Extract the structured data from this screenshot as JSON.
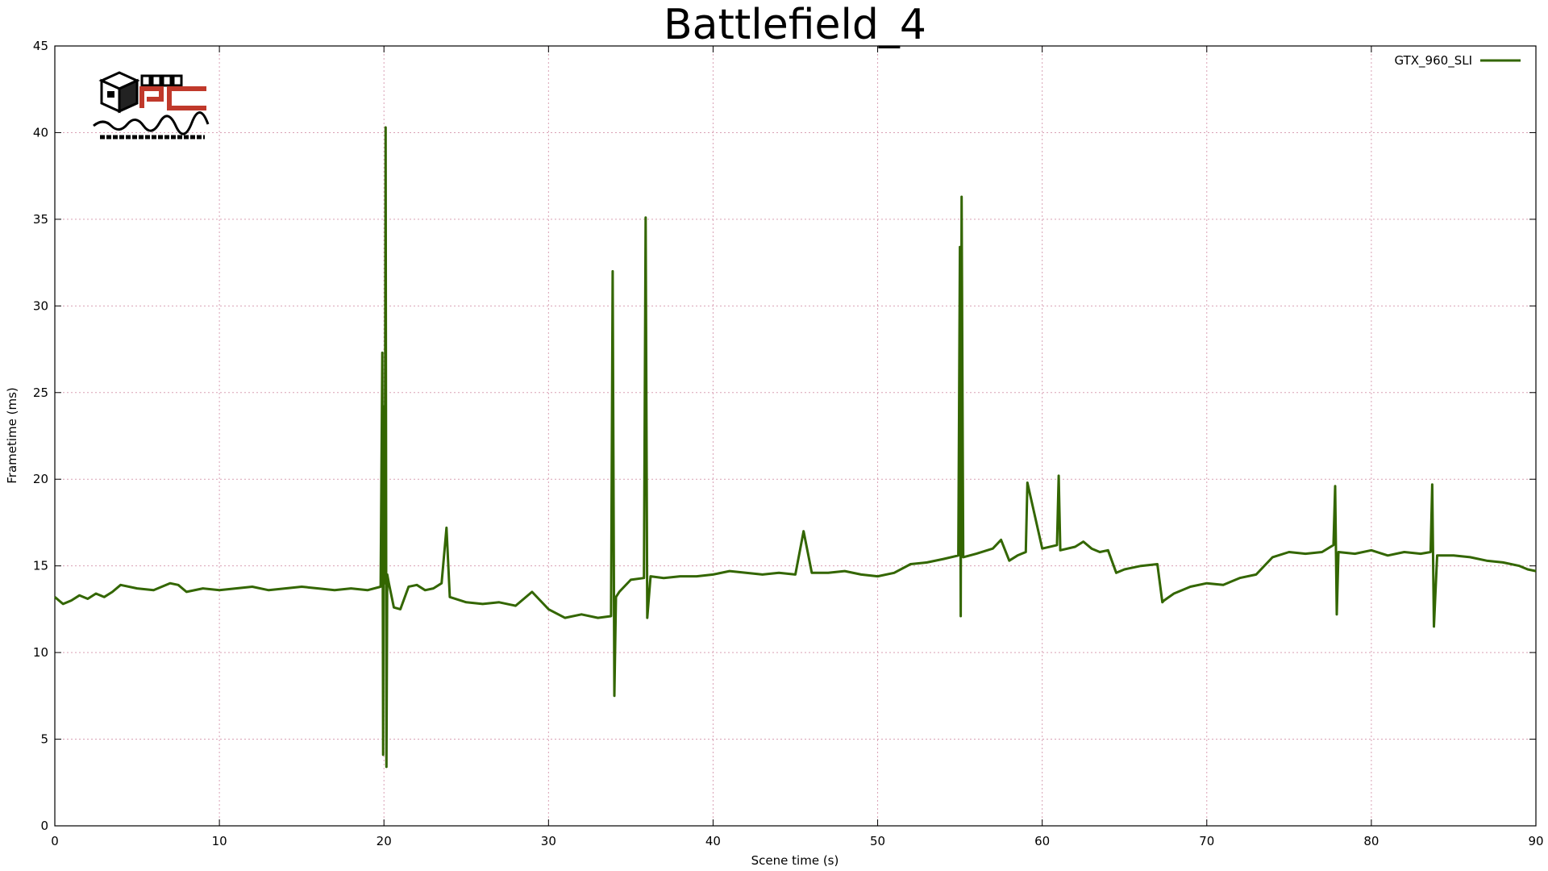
{
  "chart_data": {
    "type": "line",
    "title": "Battlefield_4",
    "xlabel": "Scene time (s)",
    "ylabel": "Frametime (ms)",
    "xlim": [
      0,
      90
    ],
    "ylim": [
      0,
      45
    ],
    "xticks": [
      0,
      10,
      20,
      30,
      40,
      50,
      60,
      70,
      80,
      90
    ],
    "yticks": [
      0,
      5,
      10,
      15,
      20,
      25,
      30,
      35,
      40,
      45
    ],
    "grid": true,
    "legend_position": "top-right",
    "series": [
      {
        "name": "GTX_960_SLI",
        "color": "#336600",
        "x": [
          0,
          0.5,
          1,
          1.5,
          2,
          2.5,
          3,
          3.5,
          4,
          5,
          6,
          7,
          7.5,
          8,
          9,
          10,
          11,
          12,
          13,
          14,
          15,
          16,
          17,
          18,
          19,
          19.8,
          19.9,
          19.95,
          20.0,
          20.05,
          20.1,
          20.15,
          20.2,
          20.3,
          20.6,
          21,
          21.5,
          22,
          22.5,
          23,
          23.5,
          23.8,
          24,
          25,
          26,
          27,
          28,
          29,
          30,
          31,
          32,
          33,
          33.8,
          33.9,
          34.0,
          34.1,
          34.3,
          35,
          35.8,
          35.9,
          36.0,
          36.2,
          37,
          38,
          39,
          40,
          41,
          42,
          43,
          44,
          45,
          45.5,
          46,
          47,
          48,
          49,
          50,
          51,
          52,
          53,
          54,
          54.9,
          55.0,
          55.05,
          55.1,
          55.2,
          56,
          57,
          57.5,
          58,
          58.5,
          59,
          59.1,
          60,
          60.9,
          61.0,
          61.1,
          62,
          62.5,
          63,
          63.5,
          64,
          64.5,
          65,
          66,
          67,
          67.3,
          67.4,
          68,
          69,
          70,
          71,
          72,
          73,
          74,
          75,
          76,
          77,
          77.7,
          77.8,
          77.9,
          78,
          79,
          80,
          81,
          82,
          83,
          83.6,
          83.7,
          83.8,
          84,
          85,
          86,
          87,
          88,
          89,
          89.5,
          90
        ],
        "values": [
          13.2,
          12.8,
          13.0,
          13.3,
          13.1,
          13.4,
          13.2,
          13.5,
          13.9,
          13.7,
          13.6,
          14.0,
          13.9,
          13.5,
          13.7,
          13.6,
          13.7,
          13.8,
          13.6,
          13.7,
          13.8,
          13.7,
          13.6,
          13.7,
          13.6,
          13.8,
          27.3,
          4.1,
          24.2,
          14.0,
          40.3,
          3.4,
          14.5,
          14.0,
          12.6,
          12.5,
          13.8,
          13.9,
          13.6,
          13.7,
          14.0,
          17.2,
          13.2,
          12.9,
          12.8,
          12.9,
          12.7,
          13.5,
          12.5,
          12.0,
          12.2,
          12.0,
          12.1,
          32.0,
          7.5,
          13.2,
          13.5,
          14.2,
          14.3,
          35.1,
          12.0,
          14.4,
          14.3,
          14.4,
          14.4,
          14.5,
          14.7,
          14.6,
          14.5,
          14.6,
          14.5,
          17.0,
          14.6,
          14.6,
          14.7,
          14.5,
          14.4,
          14.6,
          15.1,
          15.2,
          15.4,
          15.6,
          33.4,
          12.1,
          36.3,
          15.5,
          15.7,
          16.0,
          16.5,
          15.3,
          15.6,
          15.8,
          19.8,
          16.0,
          16.2,
          20.2,
          15.9,
          16.1,
          16.4,
          16.0,
          15.8,
          15.9,
          14.6,
          14.8,
          15.0,
          15.1,
          12.9,
          13.0,
          13.4,
          13.8,
          14.0,
          13.9,
          14.3,
          14.5,
          15.5,
          15.8,
          15.7,
          15.8,
          16.2,
          19.6,
          12.2,
          15.8,
          15.7,
          15.9,
          15.6,
          15.8,
          15.7,
          15.8,
          19.7,
          11.5,
          15.6,
          15.6,
          15.5,
          15.3,
          15.2,
          15.0,
          14.8,
          14.7
        ]
      }
    ]
  }
}
